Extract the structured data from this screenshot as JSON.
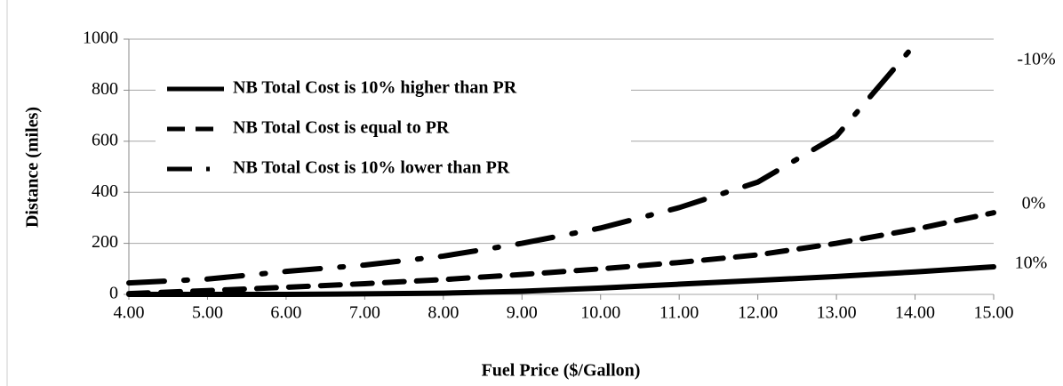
{
  "chart_data": {
    "type": "line",
    "x_label": "Fuel Price ($/Gallon)",
    "y_label": "Distance (miles)",
    "x": [
      4,
      5,
      6,
      7,
      8,
      9,
      10,
      11,
      12,
      13,
      14,
      15
    ],
    "series": [
      {
        "name": "NB Total Cost is 10% higher than PR",
        "color": "#000000",
        "dash": "solid",
        "values": [
          0,
          0,
          0,
          2,
          5,
          12,
          25,
          40,
          55,
          70,
          88,
          108
        ]
      },
      {
        "name": "NB Total Cost is equal to PR",
        "color": "#000000",
        "dash": "dashed",
        "values": [
          3,
          15,
          28,
          42,
          58,
          78,
          100,
          125,
          155,
          200,
          255,
          320
        ]
      },
      {
        "name": "NB Total Cost is 10% lower than PR",
        "color": "#000000",
        "dash": "dashdot",
        "values": [
          45,
          60,
          90,
          115,
          150,
          200,
          260,
          340,
          440,
          620,
          980,
          null
        ]
      }
    ],
    "annotations": [
      "-10%",
      "0%",
      "10%"
    ],
    "xlim": [
      4,
      15
    ],
    "xticks": [
      {
        "value": 4,
        "label": "4.00"
      },
      {
        "value": 5,
        "label": "5.00"
      },
      {
        "value": 6,
        "label": "6.00"
      },
      {
        "value": 7,
        "label": "7.00"
      },
      {
        "value": 8,
        "label": "8.00"
      },
      {
        "value": 9,
        "label": "9.00"
      },
      {
        "value": 10,
        "label": "10.00"
      },
      {
        "value": 11,
        "label": "11.00"
      },
      {
        "value": 12,
        "label": "12.00"
      },
      {
        "value": 13,
        "label": "13.00"
      },
      {
        "value": 14,
        "label": "14.00"
      },
      {
        "value": 15,
        "label": "15.00"
      }
    ],
    "ylim": [
      0,
      1000
    ],
    "yticks": [
      0,
      200,
      400,
      600,
      800,
      1000
    ],
    "grid": true
  }
}
